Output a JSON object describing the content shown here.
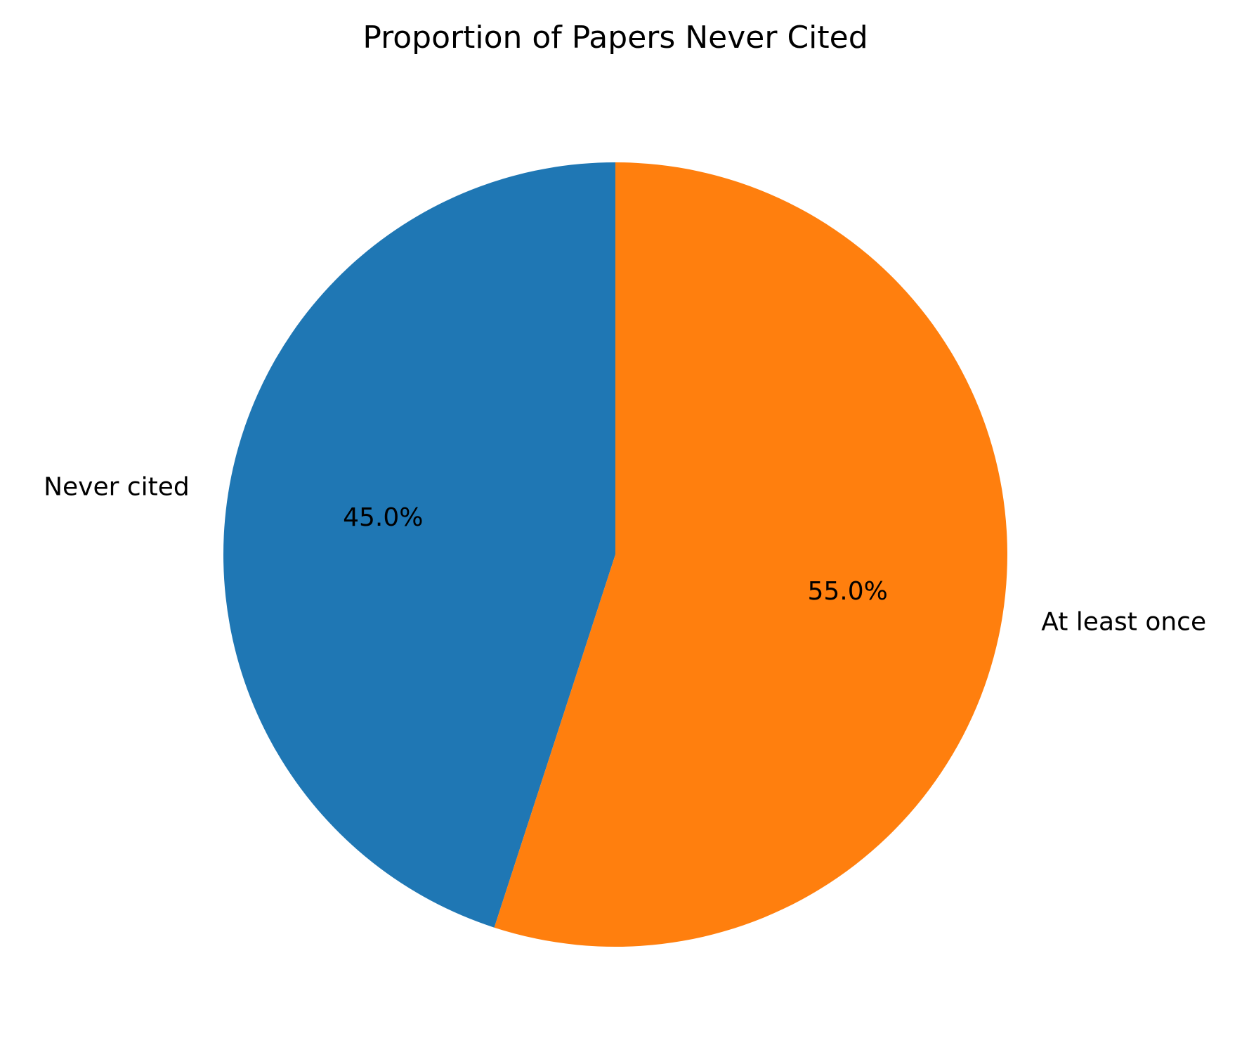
{
  "chart_data": {
    "type": "pie",
    "title": "Proportion of Papers Never Cited",
    "slices": [
      {
        "label": "Never cited",
        "value": 45.0,
        "pct_label": "45.0%",
        "color": "#1f77b4"
      },
      {
        "label": "At least once",
        "value": 55.0,
        "pct_label": "55.0%",
        "color": "#ff7f0e"
      }
    ],
    "start_angle_deg": 90,
    "direction": "counterclockwise",
    "legend": "none"
  }
}
